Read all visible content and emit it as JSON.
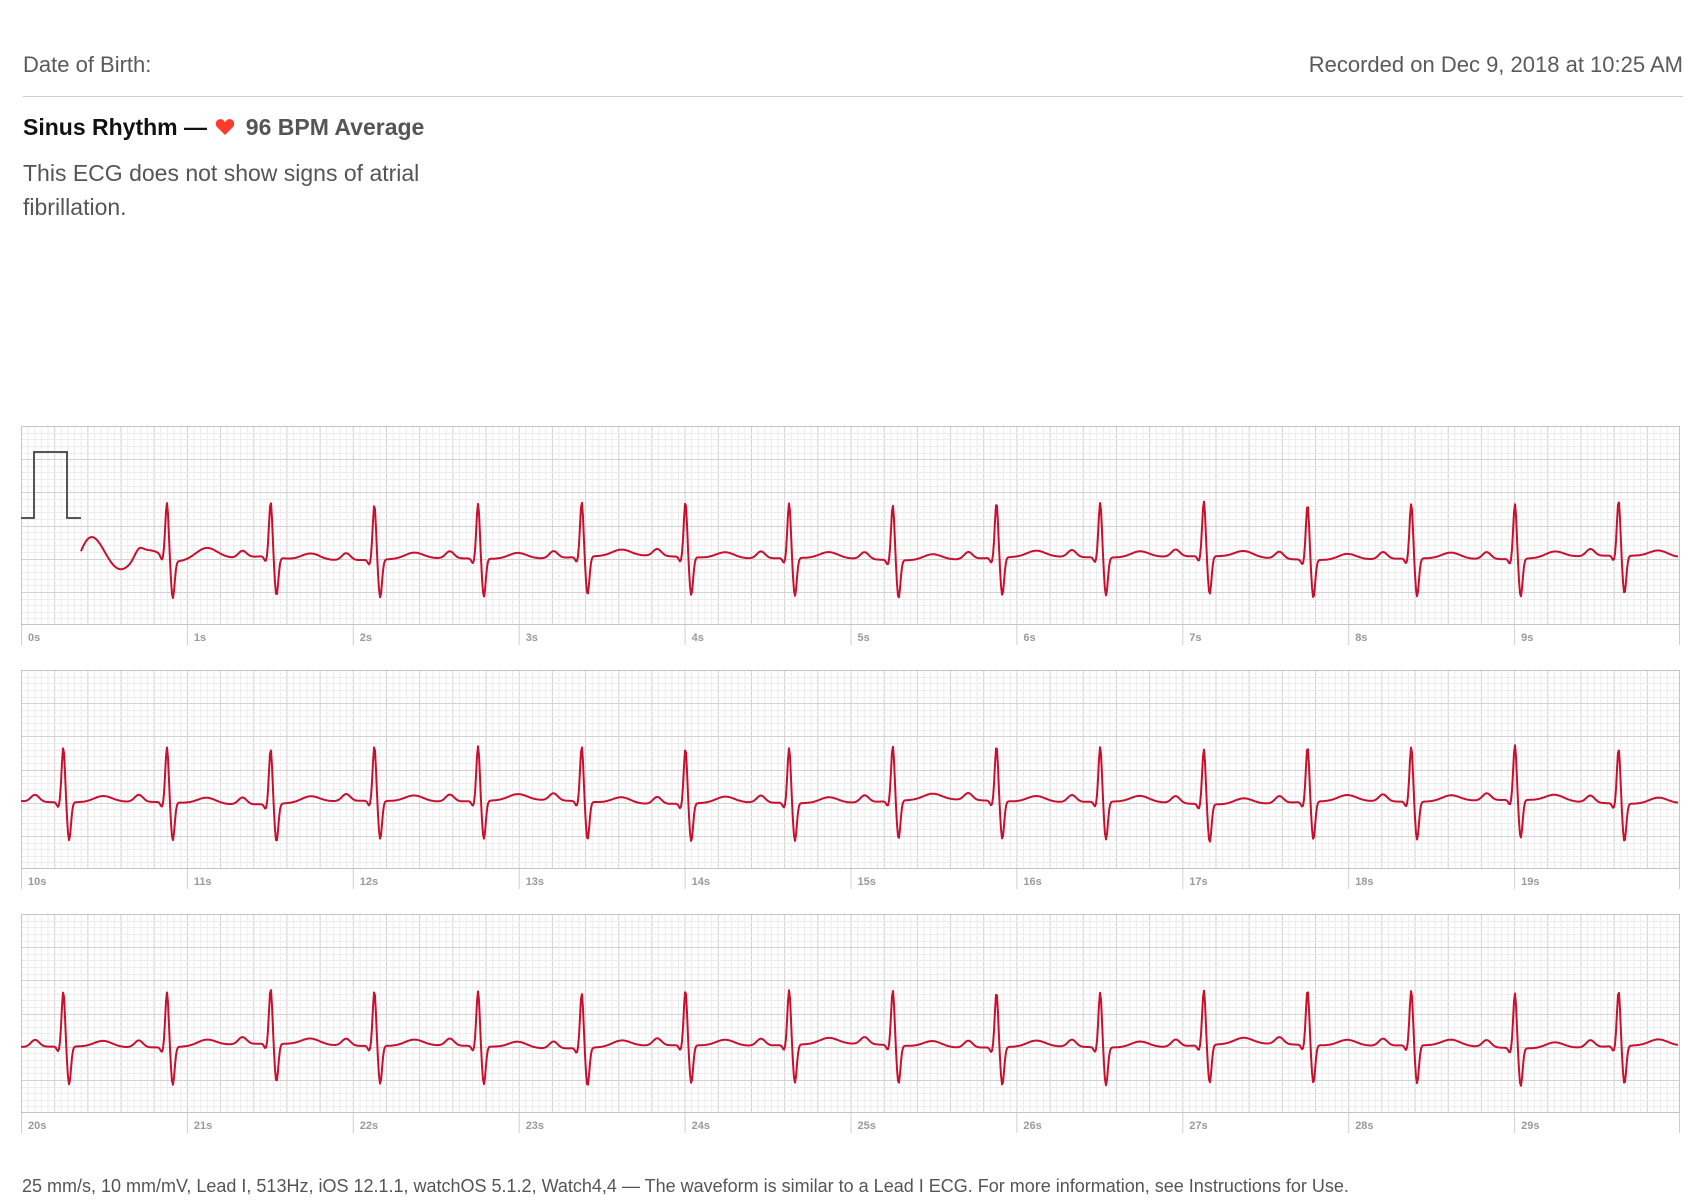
{
  "header": {
    "dob_label": "Date of Birth:",
    "recorded": "Recorded on Dec 9, 2018 at 10:25 AM"
  },
  "summary": {
    "rhythm": "Sinus Rhythm —",
    "bpm": "96 BPM Average",
    "heart_icon": "heart-icon",
    "description": "This ECG does not show signs of atrial fibrillation."
  },
  "strips": [
    {
      "labels": [
        "0s",
        "1s",
        "2s",
        "3s",
        "4s",
        "5s",
        "6s",
        "7s",
        "8s",
        "9s"
      ]
    },
    {
      "labels": [
        "10s",
        "11s",
        "12s",
        "13s",
        "14s",
        "15s",
        "16s",
        "17s",
        "18s",
        "19s"
      ]
    },
    {
      "labels": [
        "20s",
        "21s",
        "22s",
        "23s",
        "24s",
        "25s",
        "26s",
        "27s",
        "28s",
        "29s"
      ]
    }
  ],
  "chart_data": {
    "type": "line",
    "series": [
      {
        "name": "",
        "x_unit": "s"
      }
    ],
    "xlim": [
      0,
      30
    ],
    "heart_rate_bpm": 96,
    "seconds_per_strip": 10,
    "calibration_pulse": true
  },
  "colors": {
    "trace": "#c8102e",
    "grid_minor": "#ececec",
    "grid_major": "#d2d2d2",
    "heart": "#ff3b30"
  },
  "footer": {
    "text": "25 mm/s, 10 mm/mV, Lead I, 513Hz, iOS 12.1.1, watchOS 5.1.2, Watch4,4 — The waveform is similar to a Lead I ECG. For more information, see Instructions for Use."
  }
}
